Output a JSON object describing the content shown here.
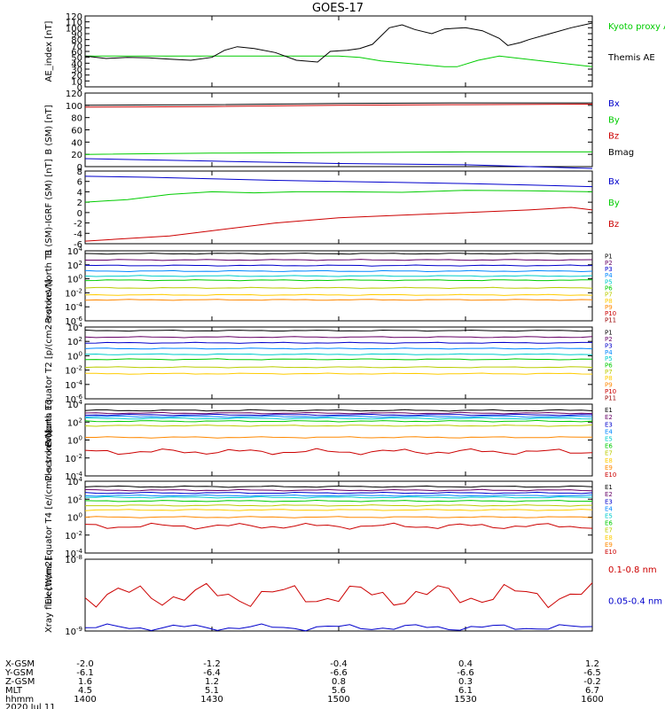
{
  "title": "GOES-17",
  "chart_data": [
    {
      "type": "line",
      "ylabel": "AE_index [nT]",
      "ylim": [
        0,
        120
      ],
      "yticks": [
        {
          "v": 0,
          "t": "0"
        },
        {
          "v": 10,
          "t": "10"
        },
        {
          "v": 20,
          "t": "20"
        },
        {
          "v": 30,
          "t": "30"
        },
        {
          "v": 40,
          "t": "40"
        },
        {
          "v": 50,
          "t": "50"
        },
        {
          "v": 60,
          "t": "60"
        },
        {
          "v": 70,
          "t": "70"
        },
        {
          "v": 80,
          "t": "80"
        },
        {
          "v": 90,
          "t": "90"
        },
        {
          "v": 100,
          "t": "100"
        },
        {
          "v": 110,
          "t": "110"
        },
        {
          "v": 120,
          "t": "120"
        }
      ],
      "legend": [
        {
          "label": "Kyoto proxy AE",
          "color": "#00cc00"
        },
        {
          "label": "Themis AE",
          "color": "#000000"
        }
      ],
      "series": [
        {
          "name": "Kyoto proxy AE",
          "color": "#00cc00",
          "x": [
            1400,
            1420,
            1440,
            1450,
            1455,
            1500,
            1505,
            1510,
            1525,
            1528,
            1533,
            1538,
            1600
          ],
          "y": [
            52,
            52,
            52,
            52,
            52,
            52,
            50,
            44,
            34,
            34,
            45,
            52,
            34
          ]
        },
        {
          "name": "Themis AE",
          "color": "#000000",
          "x": [
            1400,
            1405,
            1410,
            1415,
            1420,
            1425,
            1430,
            1433,
            1436,
            1440,
            1445,
            1450,
            1455,
            1458,
            1502,
            1505,
            1508,
            1512,
            1515,
            1518,
            1522,
            1525,
            1530,
            1534,
            1538,
            1540,
            1543,
            1545,
            1550,
            1555,
            1600
          ],
          "y": [
            52,
            48,
            50,
            49,
            47,
            45,
            50,
            62,
            68,
            65,
            58,
            45,
            42,
            60,
            62,
            65,
            72,
            100,
            105,
            97,
            90,
            98,
            100,
            95,
            82,
            70,
            75,
            80,
            90,
            100,
            108
          ]
        }
      ]
    },
    {
      "type": "line",
      "ylabel": "B (SM) [nT]",
      "ylim": [
        0,
        120
      ],
      "yticks": [
        {
          "v": 0,
          "t": "0"
        },
        {
          "v": 20,
          "t": "20"
        },
        {
          "v": 40,
          "t": "40"
        },
        {
          "v": 60,
          "t": "60"
        },
        {
          "v": 80,
          "t": "80"
        },
        {
          "v": 100,
          "t": "100"
        },
        {
          "v": 120,
          "t": "120"
        }
      ],
      "legend": [
        {
          "label": "Bx",
          "color": "#0000cc"
        },
        {
          "label": "By",
          "color": "#00cc00"
        },
        {
          "label": "Bz",
          "color": "#cc0000"
        },
        {
          "label": "Bmag",
          "color": "#000000"
        }
      ],
      "series": [
        {
          "name": "Bx",
          "color": "#0000cc",
          "x": [
            1400,
            1430,
            1500,
            1530,
            1600
          ],
          "y": [
            13,
            9,
            5,
            3,
            -3
          ]
        },
        {
          "name": "By",
          "color": "#00cc00",
          "x": [
            1400,
            1430,
            1500,
            1530,
            1600
          ],
          "y": [
            20,
            22,
            23,
            24,
            24
          ]
        },
        {
          "name": "Bz",
          "color": "#cc0000",
          "x": [
            1400,
            1430,
            1500,
            1530,
            1600
          ],
          "y": [
            97,
            98,
            100,
            101,
            102
          ]
        },
        {
          "name": "Bmag",
          "color": "#000000",
          "x": [
            1400,
            1430,
            1500,
            1530,
            1600
          ],
          "y": [
            100,
            101,
            103,
            104,
            104
          ]
        }
      ]
    },
    {
      "type": "line",
      "ylabel": "B (SM)-IGRF (SM) [nT]",
      "ylim": [
        -6,
        8
      ],
      "yticks": [
        {
          "v": -6,
          "t": "-6"
        },
        {
          "v": -4,
          "t": "-4"
        },
        {
          "v": -2,
          "t": "-2"
        },
        {
          "v": 0,
          "t": "0"
        },
        {
          "v": 2,
          "t": "2"
        },
        {
          "v": 4,
          "t": "4"
        },
        {
          "v": 6,
          "t": "6"
        },
        {
          "v": 8,
          "t": "8"
        }
      ],
      "legend": [
        {
          "label": "Bx",
          "color": "#0000cc"
        },
        {
          "label": "By",
          "color": "#00cc00"
        },
        {
          "label": "Bz",
          "color": "#cc0000"
        }
      ],
      "series": [
        {
          "name": "Bx",
          "color": "#0000cc",
          "x": [
            1400,
            1415,
            1430,
            1445,
            1500,
            1515,
            1530,
            1545,
            1600
          ],
          "y": [
            7,
            6.8,
            6.5,
            6.2,
            6,
            5.8,
            5.6,
            5.3,
            5
          ]
        },
        {
          "name": "By",
          "color": "#00cc00",
          "x": [
            1400,
            1410,
            1420,
            1430,
            1440,
            1450,
            1500,
            1515,
            1530,
            1545,
            1600
          ],
          "y": [
            2,
            2.5,
            3.5,
            4,
            3.8,
            4,
            4,
            3.9,
            4.3,
            4.2,
            4
          ]
        },
        {
          "name": "Bz",
          "color": "#cc0000",
          "x": [
            1400,
            1410,
            1420,
            1430,
            1445,
            1500,
            1515,
            1530,
            1545,
            1555,
            1600
          ],
          "y": [
            -5.5,
            -5,
            -4.5,
            -3.5,
            -2,
            -1,
            -0.5,
            0,
            0.5,
            1,
            0.5
          ]
        }
      ]
    },
    {
      "type": "line",
      "log": true,
      "ylabel": "Protons North T1",
      "ylim": [
        -6,
        4
      ],
      "yticks": [
        {
          "v": 4,
          "t": "10^4"
        },
        {
          "v": 2,
          "t": "10^2"
        },
        {
          "v": 0,
          "t": "10^0"
        },
        {
          "v": -2,
          "t": "10^-2"
        },
        {
          "v": -4,
          "t": "10^-4"
        },
        {
          "v": -6,
          "t": "10^-6"
        }
      ],
      "legend": [
        {
          "label": "P1",
          "color": "#000000"
        },
        {
          "label": "P2",
          "color": "#660066"
        },
        {
          "label": "P3",
          "color": "#0000cc"
        },
        {
          "label": "P4",
          "color": "#0088ff"
        },
        {
          "label": "P5",
          "color": "#00cccc"
        },
        {
          "label": "P6",
          "color": "#00cc00"
        },
        {
          "label": "P7",
          "color": "#bbcc00"
        },
        {
          "label": "P8",
          "color": "#ffcc00"
        },
        {
          "label": "P9",
          "color": "#ff8800"
        },
        {
          "label": "P10",
          "color": "#cc0000"
        },
        {
          "label": "P11",
          "color": "#990000"
        }
      ],
      "series": [
        {
          "name": "P1",
          "color": "#000000",
          "level": 3.6
        },
        {
          "name": "P2",
          "color": "#660066",
          "level": 2.7
        },
        {
          "name": "P3",
          "color": "#0000cc",
          "level": 1.9
        },
        {
          "name": "P4",
          "color": "#0088ff",
          "level": 1.1
        },
        {
          "name": "P5",
          "color": "#00cccc",
          "level": 0.4
        },
        {
          "name": "P6",
          "color": "#00cc00",
          "level": -0.2
        },
        {
          "name": "P7",
          "color": "#bbcc00",
          "level": -1.3
        },
        {
          "name": "P8",
          "color": "#ffcc00",
          "level": -2.3
        },
        {
          "name": "P9",
          "color": "#ff8800",
          "level": -3.0
        }
      ]
    },
    {
      "type": "line",
      "log": true,
      "ylabel": "Protons Equator T2 [p/(cm2-s-sr-keV)]",
      "ylim": [
        -6,
        4
      ],
      "yticks": [
        {
          "v": 4,
          "t": "10^4"
        },
        {
          "v": 2,
          "t": "10^2"
        },
        {
          "v": 0,
          "t": "10^0"
        },
        {
          "v": -2,
          "t": "10^-2"
        },
        {
          "v": -4,
          "t": "10^-4"
        },
        {
          "v": -6,
          "t": "10^-6"
        }
      ],
      "legend": [
        {
          "label": "P1",
          "color": "#000000"
        },
        {
          "label": "P2",
          "color": "#660066"
        },
        {
          "label": "P3",
          "color": "#0000cc"
        },
        {
          "label": "P4",
          "color": "#0088ff"
        },
        {
          "label": "P5",
          "color": "#00cccc"
        },
        {
          "label": "P6",
          "color": "#00cc00"
        },
        {
          "label": "P7",
          "color": "#bbcc00"
        },
        {
          "label": "P8",
          "color": "#ffcc00"
        },
        {
          "label": "P9",
          "color": "#ff8800"
        },
        {
          "label": "P10",
          "color": "#cc0000"
        },
        {
          "label": "P11",
          "color": "#990000"
        }
      ],
      "series": [
        {
          "name": "P1",
          "color": "#000000",
          "level": 3.5
        },
        {
          "name": "P2",
          "color": "#660066",
          "level": 2.6
        },
        {
          "name": "P3",
          "color": "#0000cc",
          "level": 1.8
        },
        {
          "name": "P4",
          "color": "#0088ff",
          "level": 1.0
        },
        {
          "name": "P5",
          "color": "#00cccc",
          "level": 0.2
        },
        {
          "name": "P6",
          "color": "#00cc00",
          "level": -0.5
        },
        {
          "name": "P7",
          "color": "#bbcc00",
          "level": -1.6
        },
        {
          "name": "P8",
          "color": "#ffcc00",
          "level": -2.5
        }
      ]
    },
    {
      "type": "line",
      "log": true,
      "ylabel": "Electrons North T3",
      "ylim": [
        -4,
        4
      ],
      "yticks": [
        {
          "v": 4,
          "t": "10^4"
        },
        {
          "v": 2,
          "t": "10^2"
        },
        {
          "v": 0,
          "t": "10^0"
        },
        {
          "v": -2,
          "t": "10^-2"
        },
        {
          "v": -4,
          "t": "10^-4"
        }
      ],
      "legend": [
        {
          "label": "E1",
          "color": "#000000"
        },
        {
          "label": "E2",
          "color": "#660066"
        },
        {
          "label": "E3",
          "color": "#0000cc"
        },
        {
          "label": "E4",
          "color": "#0088ff"
        },
        {
          "label": "E5",
          "color": "#00cccc"
        },
        {
          "label": "E6",
          "color": "#00cc00"
        },
        {
          "label": "E7",
          "color": "#bbcc00"
        },
        {
          "label": "E8",
          "color": "#ffcc00"
        },
        {
          "label": "E9",
          "color": "#ff8800"
        },
        {
          "label": "E10",
          "color": "#cc0000"
        }
      ],
      "series": [
        {
          "name": "E1",
          "color": "#000000",
          "level": 3.3
        },
        {
          "name": "E2",
          "color": "#660066",
          "level": 3.0
        },
        {
          "name": "E3",
          "color": "#0000cc",
          "level": 2.8
        },
        {
          "name": "E4",
          "color": "#0088ff",
          "level": 2.6
        },
        {
          "name": "E5",
          "color": "#00cccc",
          "level": 2.4
        },
        {
          "name": "E6",
          "color": "#00cc00",
          "level": 2.1
        },
        {
          "name": "E7",
          "color": "#bbcc00",
          "level": 1.6
        },
        {
          "name": "E8",
          "color": "#ff8800",
          "level": 0.3
        },
        {
          "name": "E10",
          "color": "#cc0000",
          "level": -1.3
        }
      ]
    },
    {
      "type": "line",
      "log": true,
      "ylabel": "Electrons Equator T4 [e/(cm2-s-sr-keV)]",
      "ylim": [
        -4,
        4
      ],
      "yticks": [
        {
          "v": 4,
          "t": "10^4"
        },
        {
          "v": 2,
          "t": "10^2"
        },
        {
          "v": 0,
          "t": "10^0"
        },
        {
          "v": -2,
          "t": "10^-2"
        },
        {
          "v": -4,
          "t": "10^-4"
        }
      ],
      "legend": [
        {
          "label": "E1",
          "color": "#000000"
        },
        {
          "label": "E2",
          "color": "#660066"
        },
        {
          "label": "E3",
          "color": "#0000cc"
        },
        {
          "label": "E4",
          "color": "#0088ff"
        },
        {
          "label": "E5",
          "color": "#00cccc"
        },
        {
          "label": "E6",
          "color": "#00cc00"
        },
        {
          "label": "E7",
          "color": "#bbcc00"
        },
        {
          "label": "E8",
          "color": "#ffcc00"
        },
        {
          "label": "E9",
          "color": "#ff8800"
        },
        {
          "label": "E10",
          "color": "#cc0000"
        }
      ],
      "series": [
        {
          "name": "E1",
          "color": "#000000",
          "level": 3.4
        },
        {
          "name": "E2",
          "color": "#660066",
          "level": 3.0
        },
        {
          "name": "E3",
          "color": "#0000cc",
          "level": 2.7
        },
        {
          "name": "E4",
          "color": "#0088ff",
          "level": 2.4
        },
        {
          "name": "E5",
          "color": "#00cccc",
          "level": 2.2
        },
        {
          "name": "E6",
          "color": "#00cc00",
          "level": 1.8
        },
        {
          "name": "E7",
          "color": "#bbcc00",
          "level": 1.3
        },
        {
          "name": "E8",
          "color": "#ffcc00",
          "level": 0.8
        },
        {
          "name": "E9",
          "color": "#ff8800",
          "level": 0.0
        },
        {
          "name": "E10",
          "color": "#cc0000",
          "level": -1.0
        }
      ]
    },
    {
      "type": "line",
      "log": true,
      "ylabel": "Xray flux [W/m2]",
      "ylim": [
        -9,
        -8
      ],
      "yticks": [
        {
          "v": -8,
          "t": "10^-8"
        },
        {
          "v": -9,
          "t": "10^-9"
        }
      ],
      "legend": [
        {
          "label": "0.1-0.8 nm",
          "color": "#cc0000"
        },
        {
          "label": "0.05-0.4 nm",
          "color": "#0000cc"
        }
      ],
      "series": [
        {
          "name": "0.1-0.8 nm",
          "color": "#cc0000",
          "level": -8.5
        },
        {
          "name": "0.05-0.4 nm",
          "color": "#0000cc",
          "level": -8.95
        }
      ]
    }
  ],
  "x_axis": {
    "range": [
      1400,
      1600
    ],
    "row_labels": [
      "X-GSM",
      "Y-GSM",
      "Z-GSM",
      "MLT",
      "hhmm"
    ],
    "date": "2020 Jul 11",
    "ticks": [
      {
        "v": 1400,
        "vals": [
          "-2.0",
          "-6.1",
          "1.6",
          "4.5",
          "1400"
        ]
      },
      {
        "v": 1430,
        "vals": [
          "-1.2",
          "-6.4",
          "1.2",
          "5.1",
          "1430"
        ]
      },
      {
        "v": 1500,
        "vals": [
          "-0.4",
          "-6.6",
          "0.8",
          "5.6",
          "1500"
        ]
      },
      {
        "v": 1530,
        "vals": [
          "0.4",
          "-6.6",
          "0.3",
          "6.1",
          "1530"
        ]
      },
      {
        "v": 1600,
        "vals": [
          "1.2",
          "-6.5",
          "-0.2",
          "6.7",
          "1600"
        ]
      }
    ]
  }
}
